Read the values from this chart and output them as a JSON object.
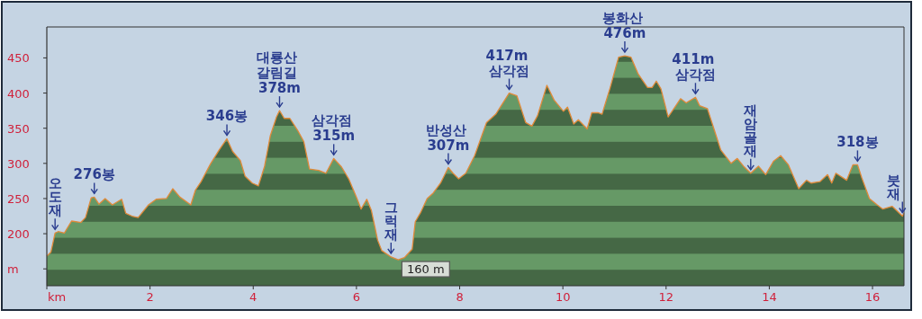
{
  "chart_data": {
    "type": "area",
    "x": [
      0,
      0.08,
      0.16,
      0.22,
      0.34,
      0.48,
      0.66,
      0.75,
      0.86,
      0.92,
      1.01,
      1.13,
      1.27,
      1.45,
      1.53,
      1.65,
      1.77,
      1.97,
      2.12,
      2.32,
      2.44,
      2.58,
      2.79,
      2.88,
      2.99,
      3.17,
      3.34,
      3.49,
      3.6,
      3.75,
      3.84,
      3.98,
      4.1,
      4.22,
      4.33,
      4.45,
      4.51,
      4.6,
      4.71,
      4.86,
      4.98,
      5.09,
      5.27,
      5.41,
      5.56,
      5.71,
      5.85,
      6.0,
      6.09,
      6.2,
      6.29,
      6.41,
      6.49,
      6.67,
      6.81,
      6.93,
      7.08,
      7.14,
      7.25,
      7.37,
      7.49,
      7.63,
      7.78,
      7.87,
      7.98,
      8.12,
      8.29,
      8.52,
      8.7,
      8.96,
      9.11,
      9.28,
      9.4,
      9.51,
      9.69,
      9.83,
      10.01,
      10.09,
      10.21,
      10.3,
      10.47,
      10.56,
      10.68,
      10.76,
      10.91,
      11.08,
      11.2,
      11.32,
      11.46,
      11.64,
      11.73,
      11.81,
      11.9,
      12.04,
      12.19,
      12.28,
      12.39,
      12.57,
      12.65,
      12.8,
      13.06,
      13.26,
      13.38,
      13.5,
      13.64,
      13.79,
      13.93,
      14.08,
      14.22,
      14.37,
      14.57,
      14.72,
      14.81,
      14.98,
      15.13,
      15.21,
      15.29,
      15.5,
      15.62,
      15.71,
      15.79,
      15.94,
      16.09,
      16.2,
      16.38,
      16.58,
      16.61
    ],
    "series": [
      {
        "color": "#669966",
        "values": [
          168,
          174,
          201,
          203,
          201,
          218,
          216,
          223,
          251,
          252,
          242,
          250,
          241,
          249,
          229,
          225,
          223,
          241,
          249,
          250,
          264,
          252,
          241,
          262,
          274,
          299,
          319,
          335,
          317,
          304,
          282,
          272,
          268,
          296,
          339,
          366,
          375,
          364,
          364,
          347,
          331,
          292,
          290,
          286,
          307,
          295,
          278,
          252,
          235,
          249,
          233,
          191,
          176,
          167,
          163,
          166,
          178,
          217,
          231,
          250,
          258,
          272,
          294,
          286,
          278,
          286,
          311,
          358,
          370,
          400,
          396,
          358,
          353,
          368,
          411,
          390,
          374,
          380,
          356,
          362,
          349,
          372,
          372,
          370,
          406,
          451,
          453,
          451,
          427,
          408,
          408,
          417,
          406,
          366,
          382,
          392,
          386,
          394,
          382,
          378,
          319,
          300,
          307,
          296,
          286,
          296,
          284,
          303,
          311,
          298,
          264,
          276,
          272,
          274,
          284,
          272,
          286,
          276,
          298,
          298,
          280,
          250,
          241,
          235,
          239,
          225,
          229
        ]
      }
    ],
    "xlim": [
      0,
      16.61
    ],
    "ylim": [
      126,
      494
    ],
    "xticks": [
      {
        "value": 0,
        "label": "km"
      },
      2,
      4,
      6,
      8,
      10,
      12,
      14,
      16
    ],
    "yticks": [
      {
        "value": 150,
        "label": "m"
      },
      200,
      250,
      300,
      350,
      400,
      450
    ],
    "annotations": [
      {
        "text": "오도재",
        "x": 0.16,
        "y": 201
      },
      {
        "text": "276봉",
        "x": 0.92,
        "y": 252
      },
      {
        "text": "346봉",
        "x": 3.49,
        "y": 335
      },
      {
        "text": "대룡산 갈림길 378m",
        "x": 4.51,
        "y": 375
      },
      {
        "text": "삼각점 315m",
        "x": 5.56,
        "y": 307
      },
      {
        "text": "그럭재",
        "x": 6.67,
        "y": 167
      },
      {
        "text": "160 m",
        "x": 6.81,
        "y": 163
      },
      {
        "text": "반성산 307m",
        "x": 7.78,
        "y": 294
      },
      {
        "text": "417m 삼각점",
        "x": 8.96,
        "y": 400
      },
      {
        "text": "봉화산 476m",
        "x": 11.2,
        "y": 453
      },
      {
        "text": "411m 삼각점",
        "x": 12.57,
        "y": 394
      },
      {
        "text": "재암골재",
        "x": 13.64,
        "y": 286
      },
      {
        "text": "318봉",
        "x": 15.71,
        "y": 298
      },
      {
        "text": "붓재",
        "x": 16.58,
        "y": 225
      }
    ]
  }
}
